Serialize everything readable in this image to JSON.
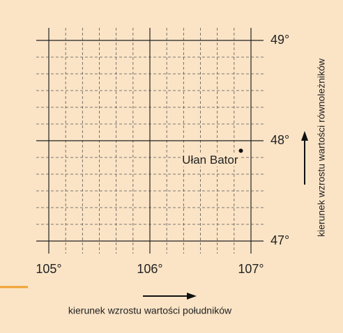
{
  "chart_data": {
    "type": "scatter",
    "xlim": [
      105,
      107
    ],
    "xticks": [
      {
        "value": 105,
        "label": "105°"
      },
      {
        "value": 106,
        "label": "106°"
      },
      {
        "value": 107,
        "label": "107°"
      }
    ],
    "ylim": [
      47,
      49
    ],
    "yticks": [
      {
        "value": 47,
        "label": "47°"
      },
      {
        "value": 48,
        "label": "48°"
      },
      {
        "value": 49,
        "label": "49°"
      }
    ],
    "minor_divisions": 6,
    "grid": true,
    "points": [
      {
        "label": "Ułan Bator",
        "x": 106.9,
        "y": 47.9
      }
    ],
    "xlabel": "kierunek wzrostu wartości południków",
    "ylabel": "kierunek wzrostu wartości równoleżników"
  }
}
